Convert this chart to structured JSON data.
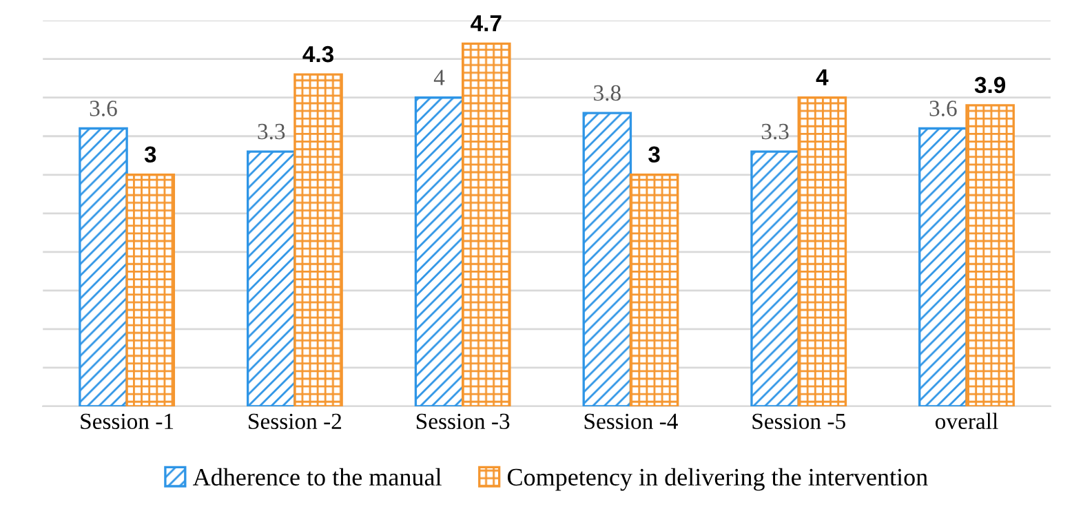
{
  "chart_data": {
    "type": "bar",
    "categories": [
      "Session -1",
      "Session -2",
      "Session -3",
      "Session -4",
      "Session -5",
      "overall"
    ],
    "series": [
      {
        "name": "Adherence to the manual",
        "color": "#2e95e6",
        "values": [
          3.6,
          3.3,
          4,
          3.8,
          3.3,
          3.6
        ]
      },
      {
        "name": "Competency in delivering the intervention",
        "color": "#f5962f",
        "values": [
          3,
          4.3,
          4.7,
          3,
          4,
          3.9
        ]
      }
    ],
    "ylim": [
      0,
      5
    ],
    "yticks": [
      {
        "value": 0,
        "label": null
      },
      {
        "value": 0.5,
        "label": null
      },
      {
        "value": 1,
        "label": null
      },
      {
        "value": 1.5,
        "label": null
      },
      {
        "value": 2,
        "label": null
      },
      {
        "value": 2.5,
        "label": null
      },
      {
        "value": 3,
        "label": null
      },
      {
        "value": 3.5,
        "label": null
      },
      {
        "value": 4,
        "label": null
      },
      {
        "value": 4.5,
        "label": null
      },
      {
        "value": 5,
        "label": null
      }
    ],
    "tick_labels": "x",
    "grid": "y",
    "legend": "bottom",
    "data_labels": true
  }
}
